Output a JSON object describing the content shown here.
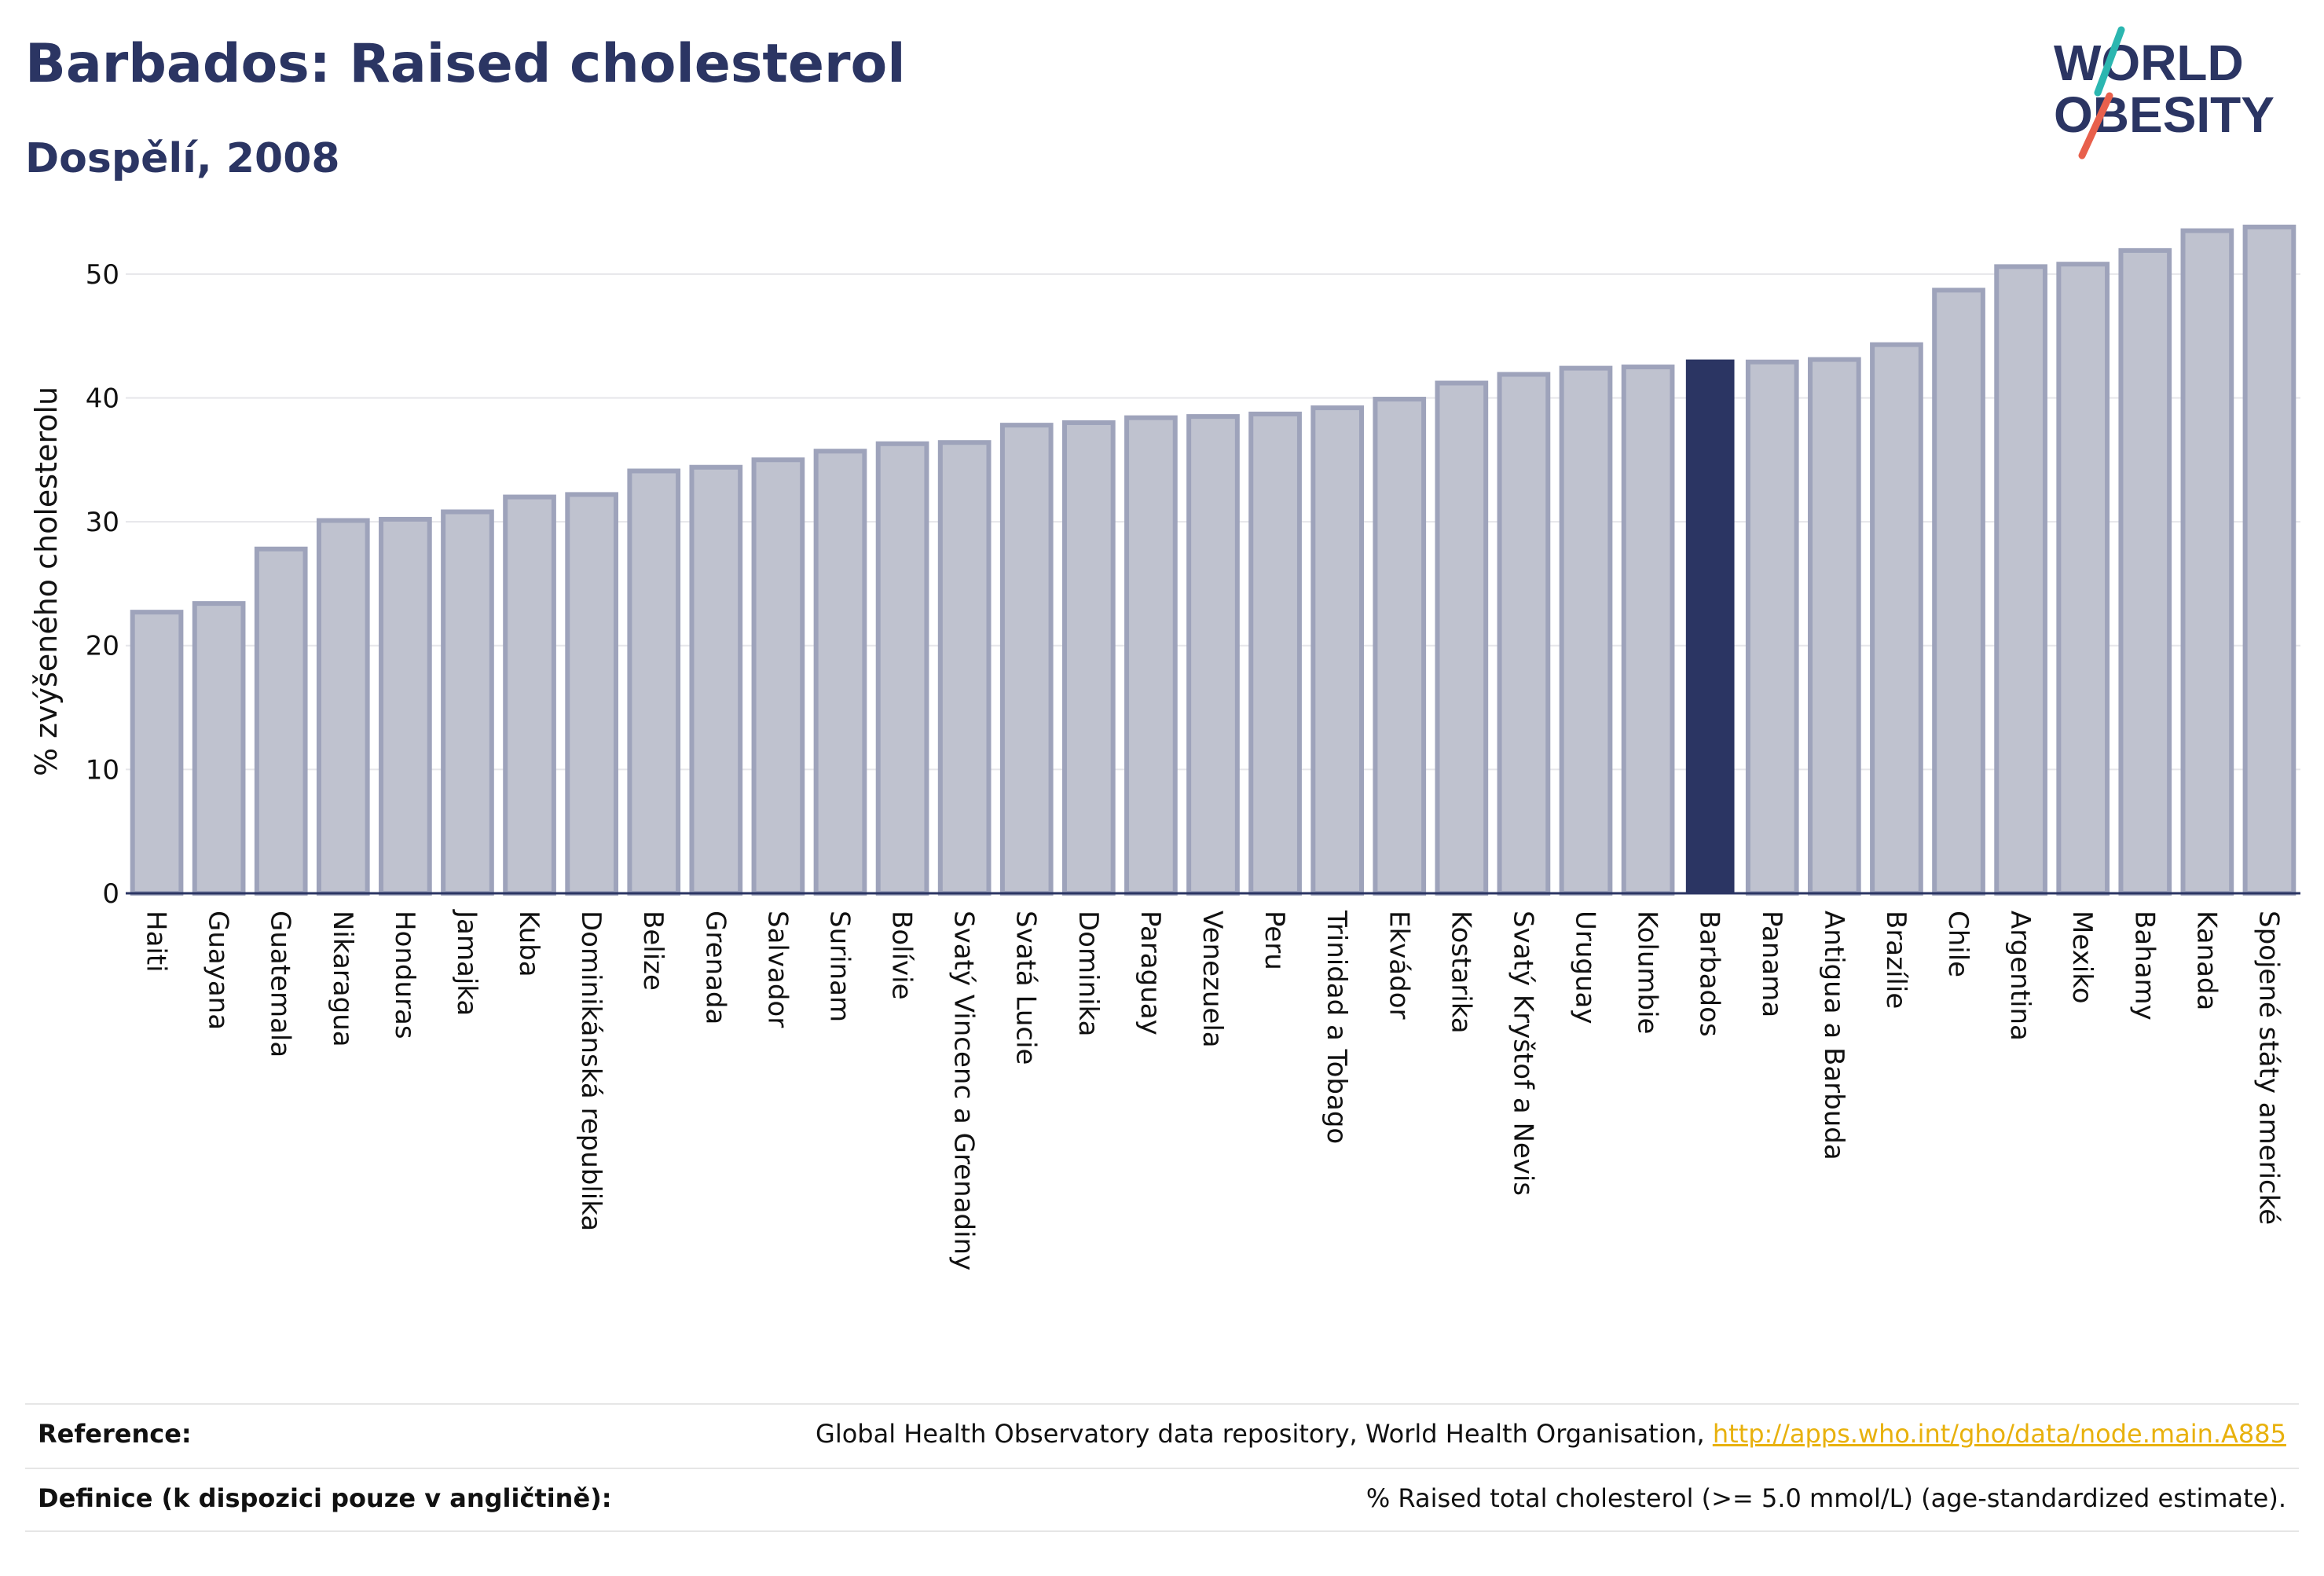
{
  "header": {
    "title": "Barbados: Raised cholesterol",
    "subtitle": "Dospělí, 2008"
  },
  "logo": {
    "line1": "WORLD",
    "line2": "OBESITY"
  },
  "chart_data": {
    "type": "bar",
    "ylabel": "% zvýšeného cholesterolu",
    "ylim": [
      0,
      55
    ],
    "yticks": [
      0,
      10,
      20,
      30,
      40,
      50
    ],
    "highlight": "Barbados",
    "colors": {
      "bar": "#bfc2cf",
      "bar_edge": "#9ea3bb",
      "highlight": "#2b3563",
      "grid": "#e6e6ea"
    },
    "categories": [
      "Haiti",
      "Guayana",
      "Guatemala",
      "Nikaragua",
      "Honduras",
      "Jamajka",
      "Kuba",
      "Dominikánská republika",
      "Belize",
      "Grenada",
      "Salvador",
      "Surinam",
      "Bolívie",
      "Svatý Vincenc a Grenadiny",
      "Svatá Lucie",
      "Dominika",
      "Paraguay",
      "Venezuela",
      "Peru",
      "Trinidad a Tobago",
      "Ekvádor",
      "Kostarika",
      "Svatý Kryštof a Nevis",
      "Uruguay",
      "Kolumbie",
      "Barbados",
      "Panama",
      "Antigua a Barbuda",
      "Brazílie",
      "Chile",
      "Argentina",
      "Mexiko",
      "Bahamy",
      "Kanada",
      "Spojené státy americké"
    ],
    "values": [
      22.7,
      23.4,
      27.8,
      30.1,
      30.2,
      30.8,
      32.0,
      32.2,
      34.1,
      34.4,
      35.0,
      35.7,
      36.3,
      36.4,
      37.8,
      38.0,
      38.4,
      38.5,
      38.7,
      39.2,
      39.9,
      41.2,
      41.9,
      42.4,
      42.5,
      43.1,
      42.9,
      43.1,
      44.3,
      48.7,
      50.6,
      50.8,
      51.9,
      53.5,
      53.8
    ]
  },
  "footer": {
    "reference_label": "Reference:",
    "reference_text": "Global Health Observatory data repository, World Health Organisation, ",
    "reference_link": "http://apps.who.int/gho/data/node.main.A885",
    "definition_label": "Definice (k dispozici pouze v angličtině):",
    "definition_text": "% Raised total cholesterol (>= 5.0 mmol/L) (age-standardized estimate)."
  }
}
